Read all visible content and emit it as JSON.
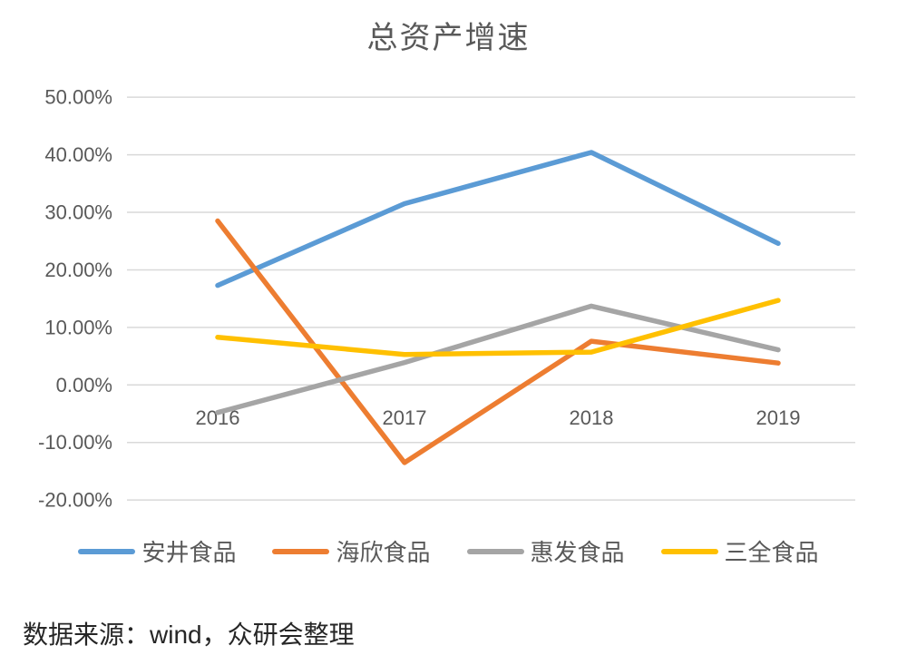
{
  "chart_title": "总资产增速",
  "source_note": "数据来源：wind，众研会整理",
  "colors": {
    "title_text": "#595959",
    "axis_text": "#595959",
    "gridline": "#d9d9d9",
    "legend_text": "#595959",
    "source_text": "#262626",
    "background": "#ffffff"
  },
  "chart_data": {
    "type": "line",
    "title": "总资产增速",
    "categories": [
      "2016",
      "2017",
      "2018",
      "2019"
    ],
    "series": [
      {
        "name": "安井食品",
        "color": "#5B9BD5",
        "values": [
          17.3,
          31.5,
          40.4,
          24.6
        ]
      },
      {
        "name": "海欣食品",
        "color": "#ED7D31",
        "values": [
          28.5,
          -13.5,
          7.6,
          3.8
        ]
      },
      {
        "name": "惠发食品",
        "color": "#A5A5A5",
        "values": [
          -4.8,
          3.9,
          13.7,
          6.1
        ]
      },
      {
        "name": "三全食品",
        "color": "#FFC000",
        "values": [
          8.3,
          5.3,
          5.7,
          14.7
        ]
      }
    ],
    "y_axis": {
      "min": -20,
      "max": 50,
      "step": 10,
      "tick_labels": [
        "50.00%",
        "40.00%",
        "30.00%",
        "20.00%",
        "10.00%",
        "0.00%",
        "-10.00%",
        "-20.00%"
      ],
      "format": "percent"
    },
    "x_axis": {
      "label": "",
      "type": "category"
    },
    "grid": true,
    "legend_position": "bottom"
  }
}
